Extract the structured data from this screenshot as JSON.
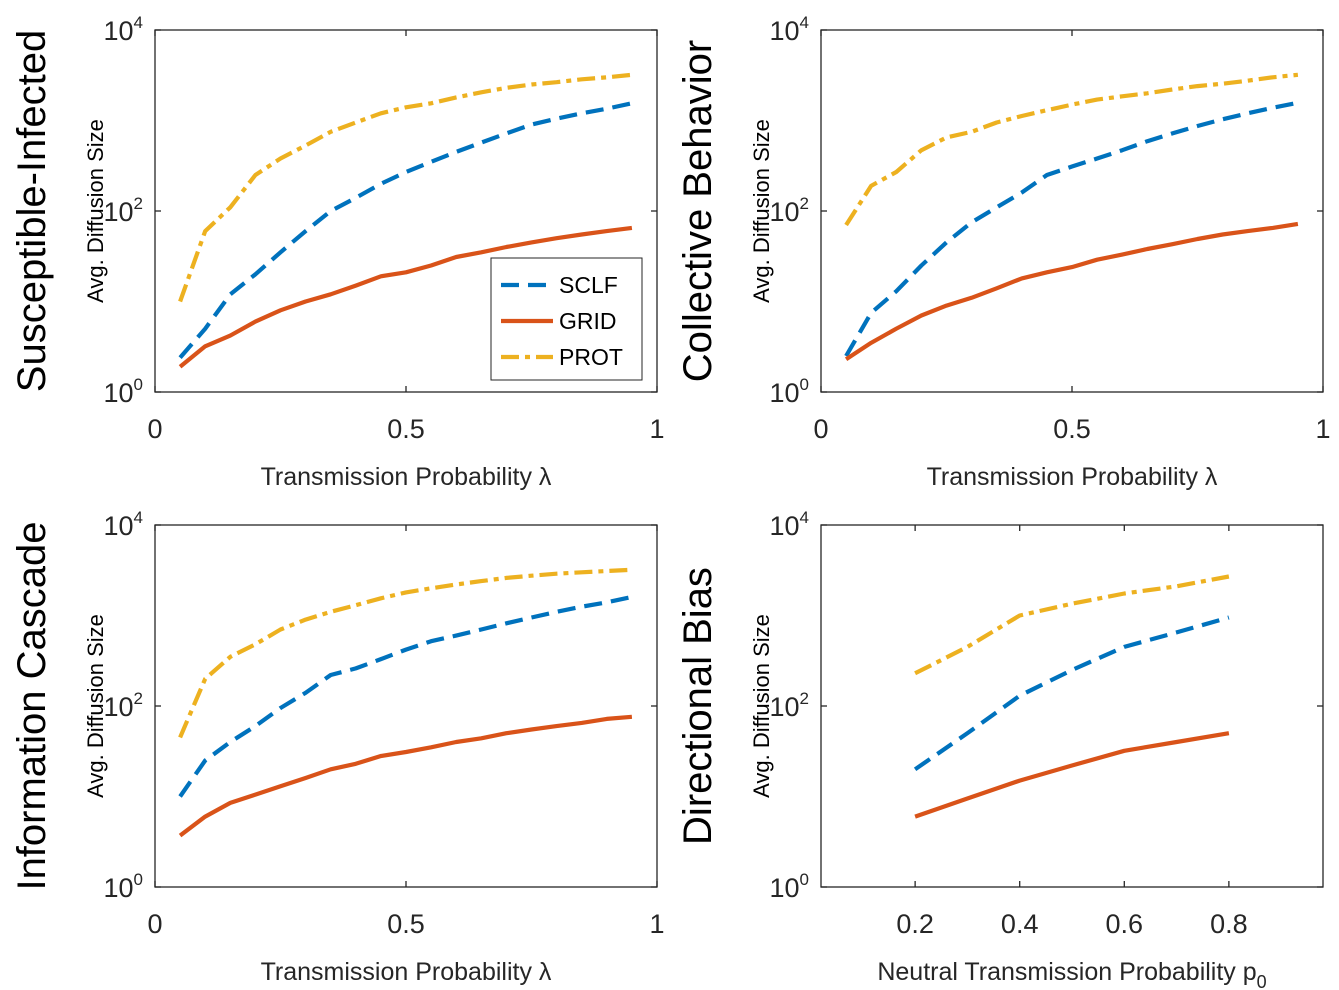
{
  "chart_data": [
    {
      "type": "line",
      "panel_label": "Susceptible-Infected",
      "xlabel": "Transmission Probability λ",
      "ylabel": "Avg. Diffusion Size",
      "xlim": [
        0,
        1
      ],
      "ylim": [
        1,
        10000
      ],
      "yscale": "log",
      "xticks": [
        0,
        0.5,
        1
      ],
      "xtick_labels": [
        "0",
        "0.5",
        "1"
      ],
      "yticks": [
        1,
        100,
        10000
      ],
      "grid": false,
      "legend": {
        "placement": "bottom-right",
        "entries": [
          "SCLF",
          "GRID",
          "PROT"
        ]
      },
      "x": [
        0.05,
        0.1,
        0.15,
        0.2,
        0.25,
        0.3,
        0.35,
        0.4,
        0.45,
        0.5,
        0.55,
        0.6,
        0.65,
        0.7,
        0.75,
        0.8,
        0.85,
        0.9,
        0.95
      ],
      "series": [
        {
          "name": "SCLF",
          "color": "#0072BD",
          "dash": "dashed",
          "values": [
            2.4,
            5,
            12,
            20,
            35,
            60,
            100,
            140,
            200,
            270,
            350,
            450,
            570,
            720,
            900,
            1050,
            1200,
            1350,
            1550
          ]
        },
        {
          "name": "GRID",
          "color": "#D95319",
          "dash": "solid",
          "values": [
            1.9,
            3.2,
            4.2,
            6,
            8,
            10,
            12,
            15,
            19,
            21,
            25,
            31,
            35,
            40,
            45,
            50,
            55,
            60,
            65
          ]
        },
        {
          "name": "PROT",
          "color": "#EDB120",
          "dash": "dashdot",
          "values": [
            10,
            60,
            110,
            250,
            380,
            530,
            750,
            950,
            1200,
            1400,
            1550,
            1800,
            2050,
            2300,
            2500,
            2650,
            2850,
            3000,
            3200
          ]
        }
      ]
    },
    {
      "type": "line",
      "panel_label": "Collective Behavior",
      "xlabel": "Transmission Probability λ",
      "ylabel": "Avg. Diffusion Size",
      "xlim": [
        0,
        1
      ],
      "ylim": [
        1,
        10000
      ],
      "yscale": "log",
      "xticks": [
        0,
        0.5,
        1
      ],
      "xtick_labels": [
        "0",
        "0.5",
        "1"
      ],
      "yticks": [
        1,
        100,
        10000
      ],
      "grid": false,
      "x": [
        0.05,
        0.1,
        0.15,
        0.2,
        0.25,
        0.3,
        0.35,
        0.4,
        0.45,
        0.5,
        0.55,
        0.6,
        0.65,
        0.7,
        0.75,
        0.8,
        0.85,
        0.9,
        0.95
      ],
      "series": [
        {
          "name": "SCLF",
          "color": "#0072BD",
          "dash": "dashed",
          "values": [
            2.5,
            7.5,
            13,
            25,
            45,
            75,
            110,
            160,
            250,
            310,
            380,
            470,
            590,
            720,
            870,
            1030,
            1200,
            1380,
            1570
          ]
        },
        {
          "name": "GRID",
          "color": "#D95319",
          "dash": "solid",
          "values": [
            2.3,
            3.5,
            5,
            7,
            9,
            11,
            14,
            18,
            21,
            24,
            29,
            33,
            38,
            43,
            49,
            55,
            60,
            65,
            72
          ]
        },
        {
          "name": "PROT",
          "color": "#EDB120",
          "dash": "dashdot",
          "values": [
            70,
            190,
            270,
            470,
            650,
            750,
            950,
            1120,
            1300,
            1500,
            1700,
            1850,
            2000,
            2200,
            2400,
            2550,
            2750,
            3000,
            3200
          ]
        }
      ]
    },
    {
      "type": "line",
      "panel_label": "Information Cascade",
      "xlabel": "Transmission Probability λ",
      "ylabel": "Avg. Diffusion Size",
      "xlim": [
        0,
        1
      ],
      "ylim": [
        1,
        10000
      ],
      "yscale": "log",
      "xticks": [
        0,
        0.5,
        1
      ],
      "xtick_labels": [
        "0",
        "0.5",
        "1"
      ],
      "yticks": [
        1,
        100,
        10000
      ],
      "grid": false,
      "x": [
        0.05,
        0.1,
        0.15,
        0.2,
        0.25,
        0.3,
        0.35,
        0.4,
        0.45,
        0.5,
        0.55,
        0.6,
        0.65,
        0.7,
        0.75,
        0.8,
        0.85,
        0.9,
        0.95
      ],
      "series": [
        {
          "name": "SCLF",
          "color": "#0072BD",
          "dash": "dashed",
          "values": [
            10,
            25,
            40,
            60,
            95,
            140,
            220,
            260,
            330,
            420,
            520,
            600,
            700,
            820,
            950,
            1100,
            1250,
            1400,
            1600
          ]
        },
        {
          "name": "GRID",
          "color": "#D95319",
          "dash": "solid",
          "values": [
            3.7,
            6,
            8.5,
            10.5,
            13,
            16,
            20,
            23,
            28,
            31,
            35,
            40,
            44,
            50,
            55,
            60,
            65,
            72,
            76
          ]
        },
        {
          "name": "PROT",
          "color": "#EDB120",
          "dash": "dashdot",
          "values": [
            45,
            200,
            350,
            480,
            700,
            900,
            1100,
            1300,
            1550,
            1800,
            2000,
            2200,
            2400,
            2600,
            2750,
            2900,
            3000,
            3100,
            3200
          ]
        }
      ]
    },
    {
      "type": "line",
      "panel_label": "Directional Bias",
      "xlabel": "Neutral Transmission Probability p0",
      "ylabel": "Avg. Diffusion Size",
      "xlim": [
        0.02,
        0.98
      ],
      "ylim": [
        1,
        10000
      ],
      "yscale": "log",
      "xticks": [
        0.2,
        0.4,
        0.6,
        0.8
      ],
      "xtick_labels": [
        "0.2",
        "0.4",
        "0.6",
        "0.8"
      ],
      "yticks": [
        1,
        100,
        10000
      ],
      "grid": false,
      "x": [
        0.2,
        0.3,
        0.4,
        0.5,
        0.6,
        0.7,
        0.8
      ],
      "series": [
        {
          "name": "SCLF",
          "color": "#0072BD",
          "dash": "dashed",
          "values": [
            20,
            50,
            130,
            250,
            450,
            650,
            950
          ]
        },
        {
          "name": "GRID",
          "color": "#D95319",
          "dash": "solid",
          "values": [
            6,
            9.5,
            15,
            22,
            32,
            40,
            50
          ]
        },
        {
          "name": "PROT",
          "color": "#EDB120",
          "dash": "dashdot",
          "values": [
            230,
            450,
            1000,
            1350,
            1750,
            2100,
            2700
          ]
        }
      ]
    }
  ]
}
